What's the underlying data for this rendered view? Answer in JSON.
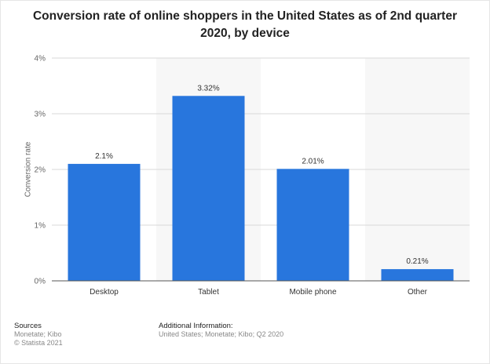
{
  "title": "Conversion rate of online shoppers in the United States as of 2nd quarter 2020, by device",
  "colors": {
    "bar": "#2876dd",
    "band": "#f7f7f7",
    "grid": "#d9d9d9",
    "axis": "#555555"
  },
  "chart_data": {
    "type": "bar",
    "categories": [
      "Desktop",
      "Tablet",
      "Mobile phone",
      "Other"
    ],
    "values": [
      2.1,
      3.32,
      2.01,
      0.21
    ],
    "value_labels": [
      "2.1%",
      "3.32%",
      "2.01%",
      "0.21%"
    ],
    "ylabel": "Conversion rate",
    "ylim": [
      0,
      4
    ],
    "yticks": [
      0,
      1,
      2,
      3,
      4
    ],
    "ytick_labels": [
      "0%",
      "1%",
      "2%",
      "3%",
      "4%"
    ],
    "grid": true
  },
  "footer": {
    "sources_label": "Sources",
    "sources_text": "Monetate; Kibo",
    "copyright": "© Statista 2021",
    "additional_label": "Additional Information:",
    "additional_text": "United States; Monetate; Kibo; Q2 2020"
  }
}
